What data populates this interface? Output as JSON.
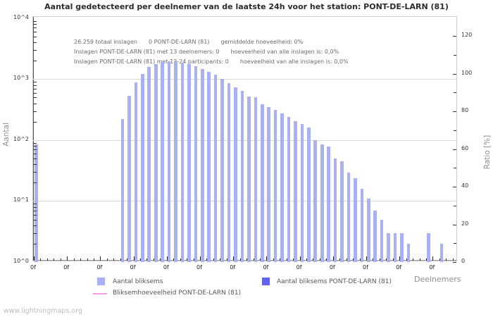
{
  "title": "Aantal gedetecteerd per deelnemer van de laatste 24h voor het station: PONT-DE-LARN (81)",
  "annotation": {
    "lines": [
      {
        "segments": [
          "26.259 totaal inslagen",
          "0 PONT-DE-LARN (81)",
          "gemiddelde hoeveelheid: 0%"
        ]
      },
      {
        "segments": [
          "Inslagen PONT-DE-LARN (81) met 13 deelnemers: 0",
          "hoeveelheid van alle inslagen is: 0,0%"
        ]
      },
      {
        "segments": [
          "Inslagen PONT-DE-LARN (81) met 13-24 participants: 0",
          "hoeveelheid van alle inslagen is: 0,0%"
        ]
      }
    ]
  },
  "axes": {
    "left_title": "Aantal",
    "right_title": "Ratio [%]",
    "x_title": "Deelnemers"
  },
  "legend": {
    "items": [
      {
        "label": "Aantal bliksems",
        "swatch": "square",
        "color": "#aab1f1"
      },
      {
        "label": "Aantal bliksems PONT-DE-LARN (81)",
        "swatch": "square",
        "color": "#6163ef"
      },
      {
        "label": "Bliksemhoeveelheid PONT-DE-LARN (81)",
        "swatch": "line",
        "color": "#f0a0e0"
      }
    ]
  },
  "footer": {
    "url": "www.lightningmaps.org"
  },
  "colors": {
    "bar": "#aab1f1",
    "station_bar": "#6163ef",
    "ratio_line": "#f0a0e0",
    "grid": "#d9d9d9",
    "frame": "#cccccc"
  },
  "chart_data": {
    "type": "bar",
    "title": "Aantal gedetecteerd per deelnemer van de laatste 24h voor het station: PONT-DE-LARN (81)",
    "xlabel": "Deelnemers",
    "ylabel_left": "Aantal",
    "ylabel_right": "Ratio [%]",
    "y_left_scale": "log10",
    "y_left_ticks": [
      {
        "label": "10^0",
        "value": 1
      },
      {
        "label": "10^1",
        "value": 10
      },
      {
        "label": "10^2",
        "value": 100
      },
      {
        "label": "10^3",
        "value": 1000
      },
      {
        "label": "10^4",
        "value": 10000
      }
    ],
    "y_right_ticks": [
      0,
      20,
      40,
      60,
      80,
      100,
      120
    ],
    "y_right_range": [
      0,
      130
    ],
    "grid": "horizontal-decades-only",
    "legend_position": "bottom",
    "x_slot_count": 64,
    "x_major_tick_label": "0f",
    "x_major_tick_count": 13,
    "x_minor_per_major": 5,
    "total_strikes_annotated": "26.259",
    "series": [
      {
        "name": "Aantal bliksems",
        "color": "#aab1f1",
        "values": [
          85,
          0,
          0,
          0,
          0,
          0,
          0,
          0,
          0,
          0,
          0,
          0,
          0,
          220,
          535,
          880,
          1220,
          1590,
          1780,
          1930,
          1960,
          1950,
          1870,
          1760,
          1620,
          1480,
          1300,
          1190,
          1015,
          865,
          735,
          650,
          520,
          510,
          390,
          350,
          315,
          273,
          240,
          205,
          183,
          160,
          100,
          86,
          79,
          50,
          45,
          29,
          24,
          16,
          11,
          7,
          5,
          3,
          3,
          3,
          2,
          0,
          0,
          3,
          0,
          2,
          0,
          0
        ]
      },
      {
        "name": "Aantal bliksems PONT-DE-LARN (81)",
        "color": "#6163ef",
        "constant_value": 0
      },
      {
        "name": "Bliksemhoeveelheid PONT-DE-LARN (81)",
        "type": "line",
        "color": "#f0a0e0",
        "constant_value": 0
      }
    ]
  }
}
